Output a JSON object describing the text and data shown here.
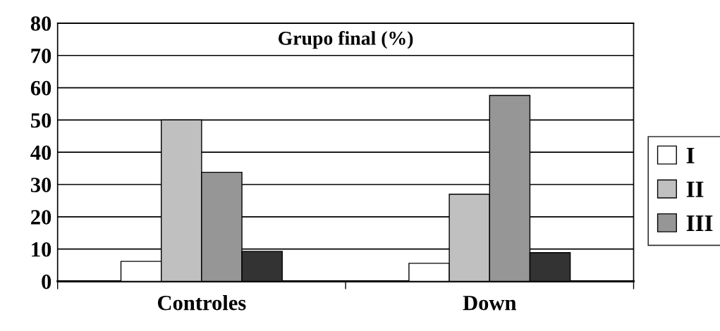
{
  "chart_data": {
    "type": "bar",
    "title": "Grupo final (%)",
    "categories": [
      "Controles",
      "Down"
    ],
    "series": [
      {
        "name": "I",
        "color": "#ffffff",
        "values": [
          6.2,
          5.6
        ]
      },
      {
        "name": "II",
        "color": "#c0c0c0",
        "values": [
          50,
          27
        ]
      },
      {
        "name": "III",
        "color": "#969696",
        "values": [
          33.8,
          57.6
        ]
      },
      {
        "color": "#333333",
        "values": [
          9.3,
          8.9
        ]
      }
    ],
    "ylim": [
      0,
      80
    ],
    "yticks": [
      0,
      10,
      20,
      30,
      40,
      50,
      60,
      70,
      80
    ],
    "grid": "y",
    "legend": "right"
  }
}
